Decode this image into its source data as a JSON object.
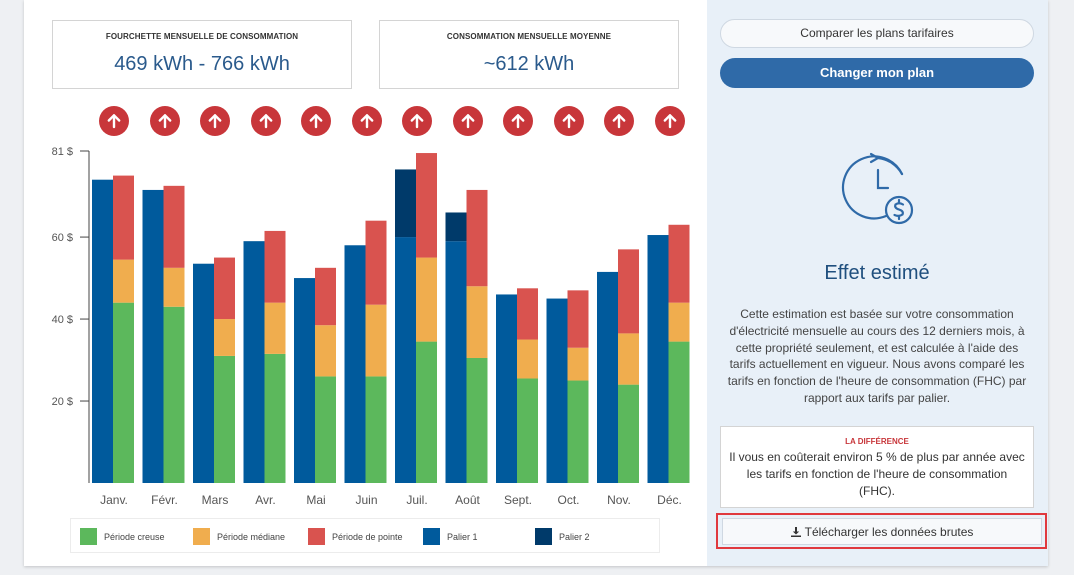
{
  "stats": {
    "range_label": "FOURCHETTE MENSUELLE DE CONSOMMATION",
    "range_value": "469 kWh - 766 kWh",
    "avg_label": "CONSOMMATION MENSUELLE MOYENNE",
    "avg_value": "~612 kWh"
  },
  "actions": {
    "compare_label": "Comparer les plans tarifaires",
    "change_label": "Changer mon plan",
    "download_label": "Télécharger les données brutes"
  },
  "effect": {
    "icon": "clock-dollar-icon",
    "title": "Effet estimé",
    "description": "Cette estimation est basée sur votre consommation d'électricité mensuelle au cours des 12 derniers mois, à cette propriété seulement, et est calculée à l'aide des tarifs actuellement en vigueur. Nous avons comparé les tarifs en fonction de l'heure de consommation (FHC) par rapport aux tarifs par palier.",
    "diff_label": "LA DIFFÉRENCE",
    "diff_text": "Il vous en coûterait environ 5 % de plus par année avec les tarifs en fonction de l'heure de consommation (FHC)."
  },
  "colors": {
    "creuse": "#5cb85c",
    "mediane": "#f0ad4e",
    "pointe": "#d9534f",
    "palier1": "#005a9c",
    "palier2": "#003a6a",
    "arrow": "#c8363a",
    "primary": "#2f6aa8"
  },
  "arrow_icons": [
    "arrow-up-icon"
  ],
  "chart_data": {
    "type": "bar",
    "ylim": [
      0,
      81
    ],
    "yticks": [
      20,
      40,
      60,
      81
    ],
    "ytick_labels": [
      "20 $",
      "40 $",
      "60 $",
      "81 $"
    ],
    "categories": [
      "Janv.",
      "Févr.",
      "Mars",
      "Avr.",
      "Mai",
      "Juin",
      "Juil.",
      "Août",
      "Sept.",
      "Oct.",
      "Nov.",
      "Déc."
    ],
    "legend": [
      "Période creuse",
      "Période médiane",
      "Période de pointe",
      "Palier 1",
      "Palier 2"
    ],
    "tiered": {
      "palier1": [
        74,
        71.5,
        53.5,
        59,
        50,
        58,
        60,
        59,
        46,
        45,
        51.5,
        60.5
      ],
      "palier2": [
        0,
        0,
        0,
        0,
        0,
        0,
        16.5,
        7,
        0,
        0,
        0,
        0
      ]
    },
    "tou": {
      "creuse": [
        44,
        43,
        31,
        31.5,
        26,
        26,
        34.5,
        30.5,
        25.5,
        25,
        24,
        34.5
      ],
      "mediane": [
        10.5,
        9.5,
        9,
        12.5,
        12.5,
        17.5,
        20.5,
        17.5,
        9.5,
        8,
        12.5,
        9.5
      ],
      "pointe": [
        20.5,
        20,
        15,
        17.5,
        14,
        20.5,
        25.5,
        23.5,
        12.5,
        14,
        20.5,
        19
      ]
    }
  }
}
